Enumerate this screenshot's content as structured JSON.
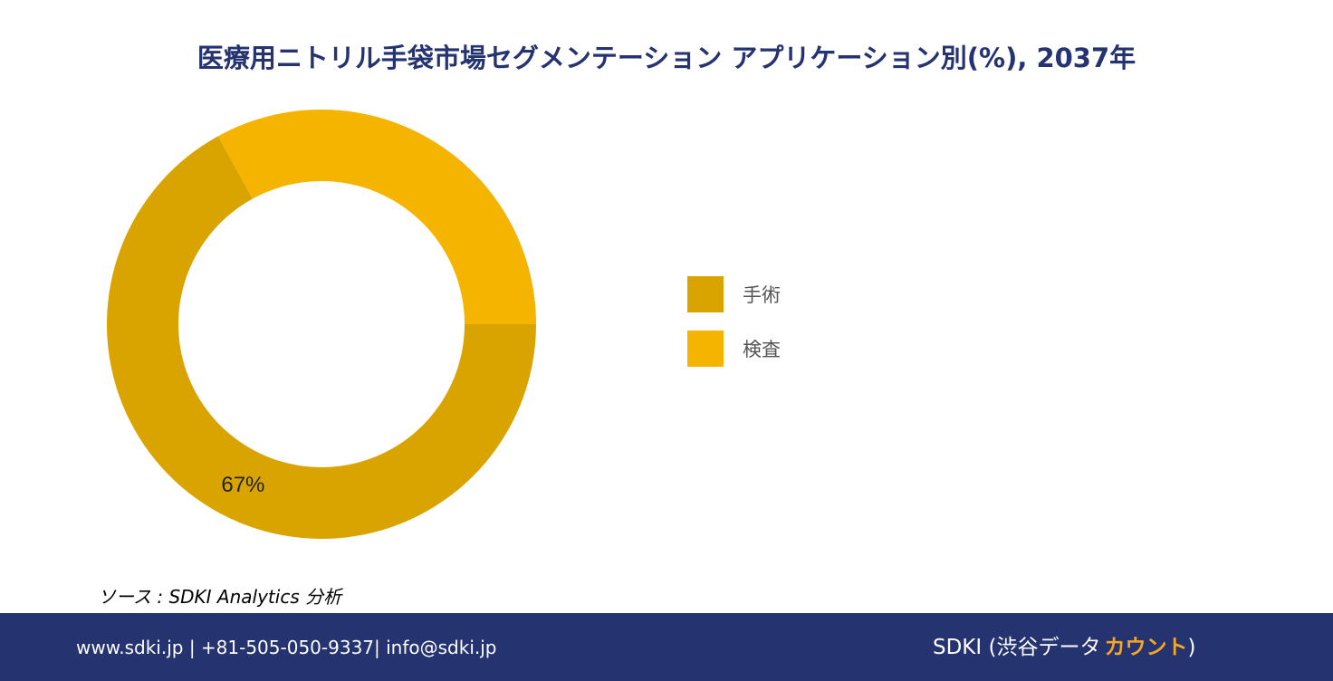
{
  "chart_data": {
    "type": "donut",
    "title": "医療用ニトリル手袋市場セグメンテーション アプリケーション別(%), 2037年",
    "categories": [
      "手術",
      "検査"
    ],
    "values": [
      67,
      33
    ],
    "value_labels": [
      "67%",
      null
    ],
    "colors": [
      "#daa400",
      "#f4b400"
    ],
    "legend": "right"
  },
  "source": "ソース : SDKI Analytics 分析",
  "footer": {
    "contact": "www.sdki.jp | +81-505-050-9337| info@sdki.jp",
    "brand": "SDKI (渋谷データ",
    "brand_highlight": "カウント",
    "brand_end": ")"
  }
}
